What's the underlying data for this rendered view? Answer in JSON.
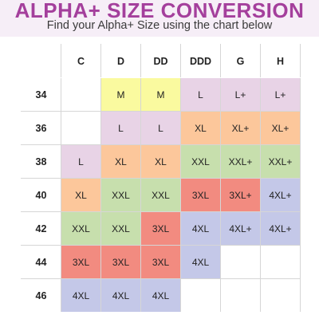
{
  "header": {
    "title": "ALPHA+ SIZE CONVERSION",
    "subtitle": "Find your Alpha+ Size using the chart below"
  },
  "colors": {
    "M": "#fafa9f",
    "L": "#e8d3e6",
    "L+": "#e8d3e6",
    "XL": "#fcc79b",
    "XL+": "#fcc79b",
    "XXL": "#c7dfad",
    "XXL+": "#c7dfad",
    "3XL": "#f28b80",
    "3XL+": "#f28b80",
    "4XL": "#c4c8e8",
    "4XL+": "#c4c8e8",
    "": "#ffffff"
  },
  "table": {
    "columns": [
      "C",
      "D",
      "DD",
      "DDD",
      "G",
      "H"
    ],
    "rows": [
      {
        "band": "34",
        "cells": [
          "",
          "M",
          "M",
          "L",
          "L+",
          "L+"
        ]
      },
      {
        "band": "36",
        "cells": [
          "",
          "L",
          "L",
          "XL",
          "XL+",
          "XL+"
        ]
      },
      {
        "band": "38",
        "cells": [
          "L",
          "XL",
          "XL",
          "XXL",
          "XXL+",
          "XXL+"
        ]
      },
      {
        "band": "40",
        "cells": [
          "XL",
          "XXL",
          "XXL",
          "3XL",
          "3XL+",
          "4XL+"
        ]
      },
      {
        "band": "42",
        "cells": [
          "XXL",
          "XXL",
          "3XL",
          "4XL",
          "4XL+",
          "4XL+"
        ]
      },
      {
        "band": "44",
        "cells": [
          "3XL",
          "3XL",
          "3XL",
          "4XL",
          "",
          ""
        ]
      },
      {
        "band": "46",
        "cells": [
          "4XL",
          "4XL",
          "4XL",
          "",
          "",
          ""
        ]
      }
    ]
  }
}
